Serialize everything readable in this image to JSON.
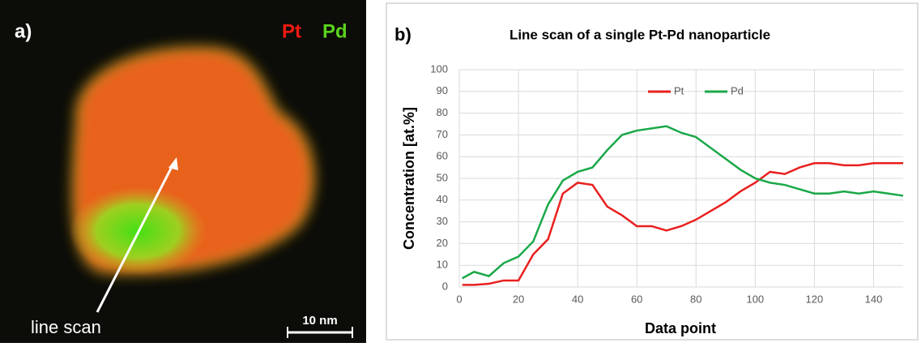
{
  "panel_a": {
    "label": "a)",
    "legend": [
      "Pt",
      "Pd"
    ],
    "annotation": "line scan",
    "scale_bar": "10 nm"
  },
  "chart_data": {
    "type": "line",
    "panel_label": "b)",
    "title": "Line scan of a single Pt-Pd nanoparticle",
    "x_label": "Data point",
    "y_label": "Concentration [at.%]",
    "x": [
      1,
      5,
      10,
      15,
      20,
      25,
      30,
      35,
      40,
      45,
      50,
      55,
      60,
      65,
      70,
      75,
      80,
      85,
      90,
      95,
      100,
      105,
      110,
      115,
      120,
      125,
      130,
      135,
      140,
      145,
      150
    ],
    "series": [
      {
        "name": "Pt",
        "color": "#e8201e",
        "values": [
          1,
          1,
          1.5,
          3,
          3,
          15,
          22,
          43,
          48,
          47,
          37,
          33,
          28,
          28,
          26,
          28,
          31,
          35,
          39,
          44,
          48,
          53,
          52,
          55,
          57,
          57,
          56,
          56,
          57,
          57,
          57
        ]
      },
      {
        "name": "Pd",
        "color": "#1aa848",
        "values": [
          4,
          7,
          5,
          11,
          14,
          21,
          38,
          49,
          53,
          55,
          63,
          70,
          72,
          73,
          74,
          71,
          69,
          64,
          59,
          54,
          50,
          48,
          47,
          45,
          43,
          43,
          44,
          43,
          44,
          43,
          42
        ]
      }
    ],
    "xlim": [
      0,
      150
    ],
    "xticks": [
      0,
      20,
      40,
      60,
      80,
      100,
      120,
      140
    ],
    "ylim": [
      0,
      100
    ],
    "yticks": [
      0,
      10,
      20,
      30,
      40,
      50,
      60,
      70,
      80,
      90,
      100
    ],
    "grid": true
  }
}
